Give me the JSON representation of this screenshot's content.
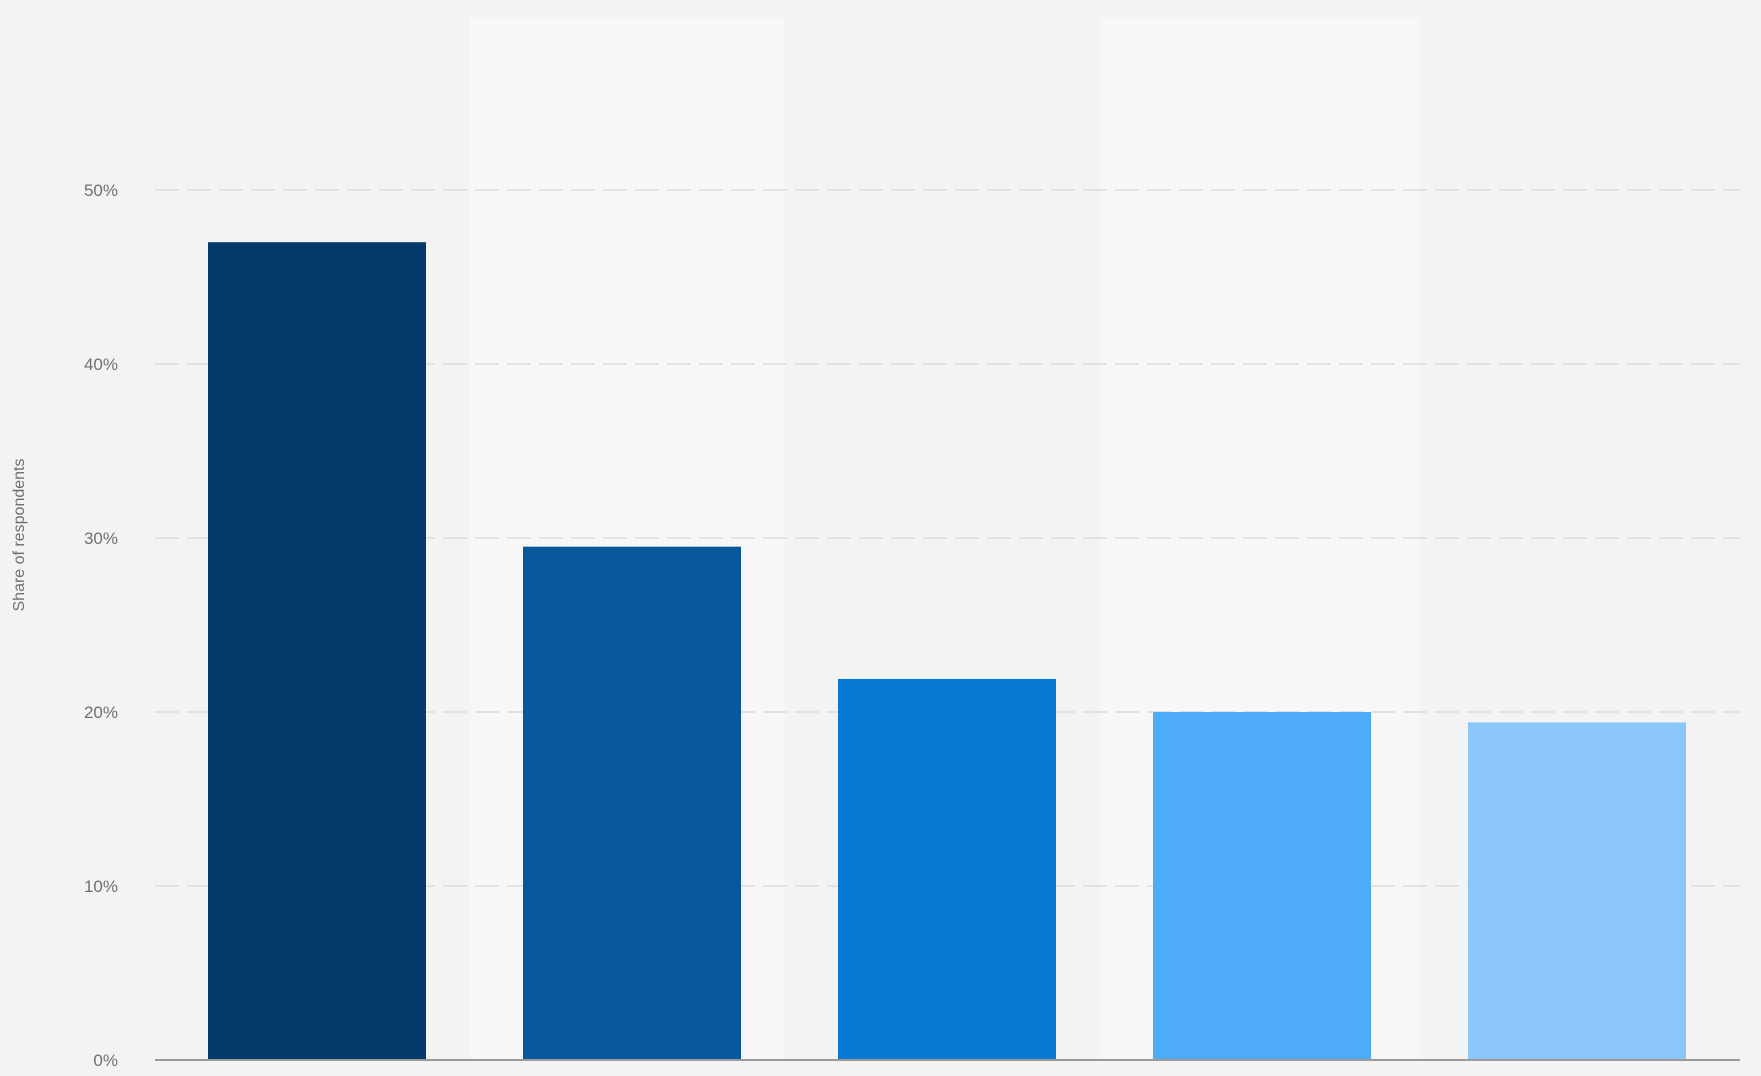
{
  "chart_data": {
    "type": "bar",
    "title": "",
    "xlabel": "",
    "ylabel": "Share of respondents",
    "categories": [
      "",
      "",
      "",
      "",
      ""
    ],
    "values": [
      47,
      29.5,
      21.9,
      20,
      19.4
    ],
    "ylim": [
      0,
      50
    ],
    "yticks": [
      0,
      10,
      20,
      30,
      40,
      50
    ],
    "ytick_labels": [
      "0%",
      "10%",
      "20%",
      "30%",
      "40%",
      "50%"
    ],
    "grid": true,
    "legend": "none",
    "colors": [
      "#063a6a",
      "#07579c",
      "#0877d2",
      "#4eabf8",
      "#8ac7f8"
    ]
  }
}
